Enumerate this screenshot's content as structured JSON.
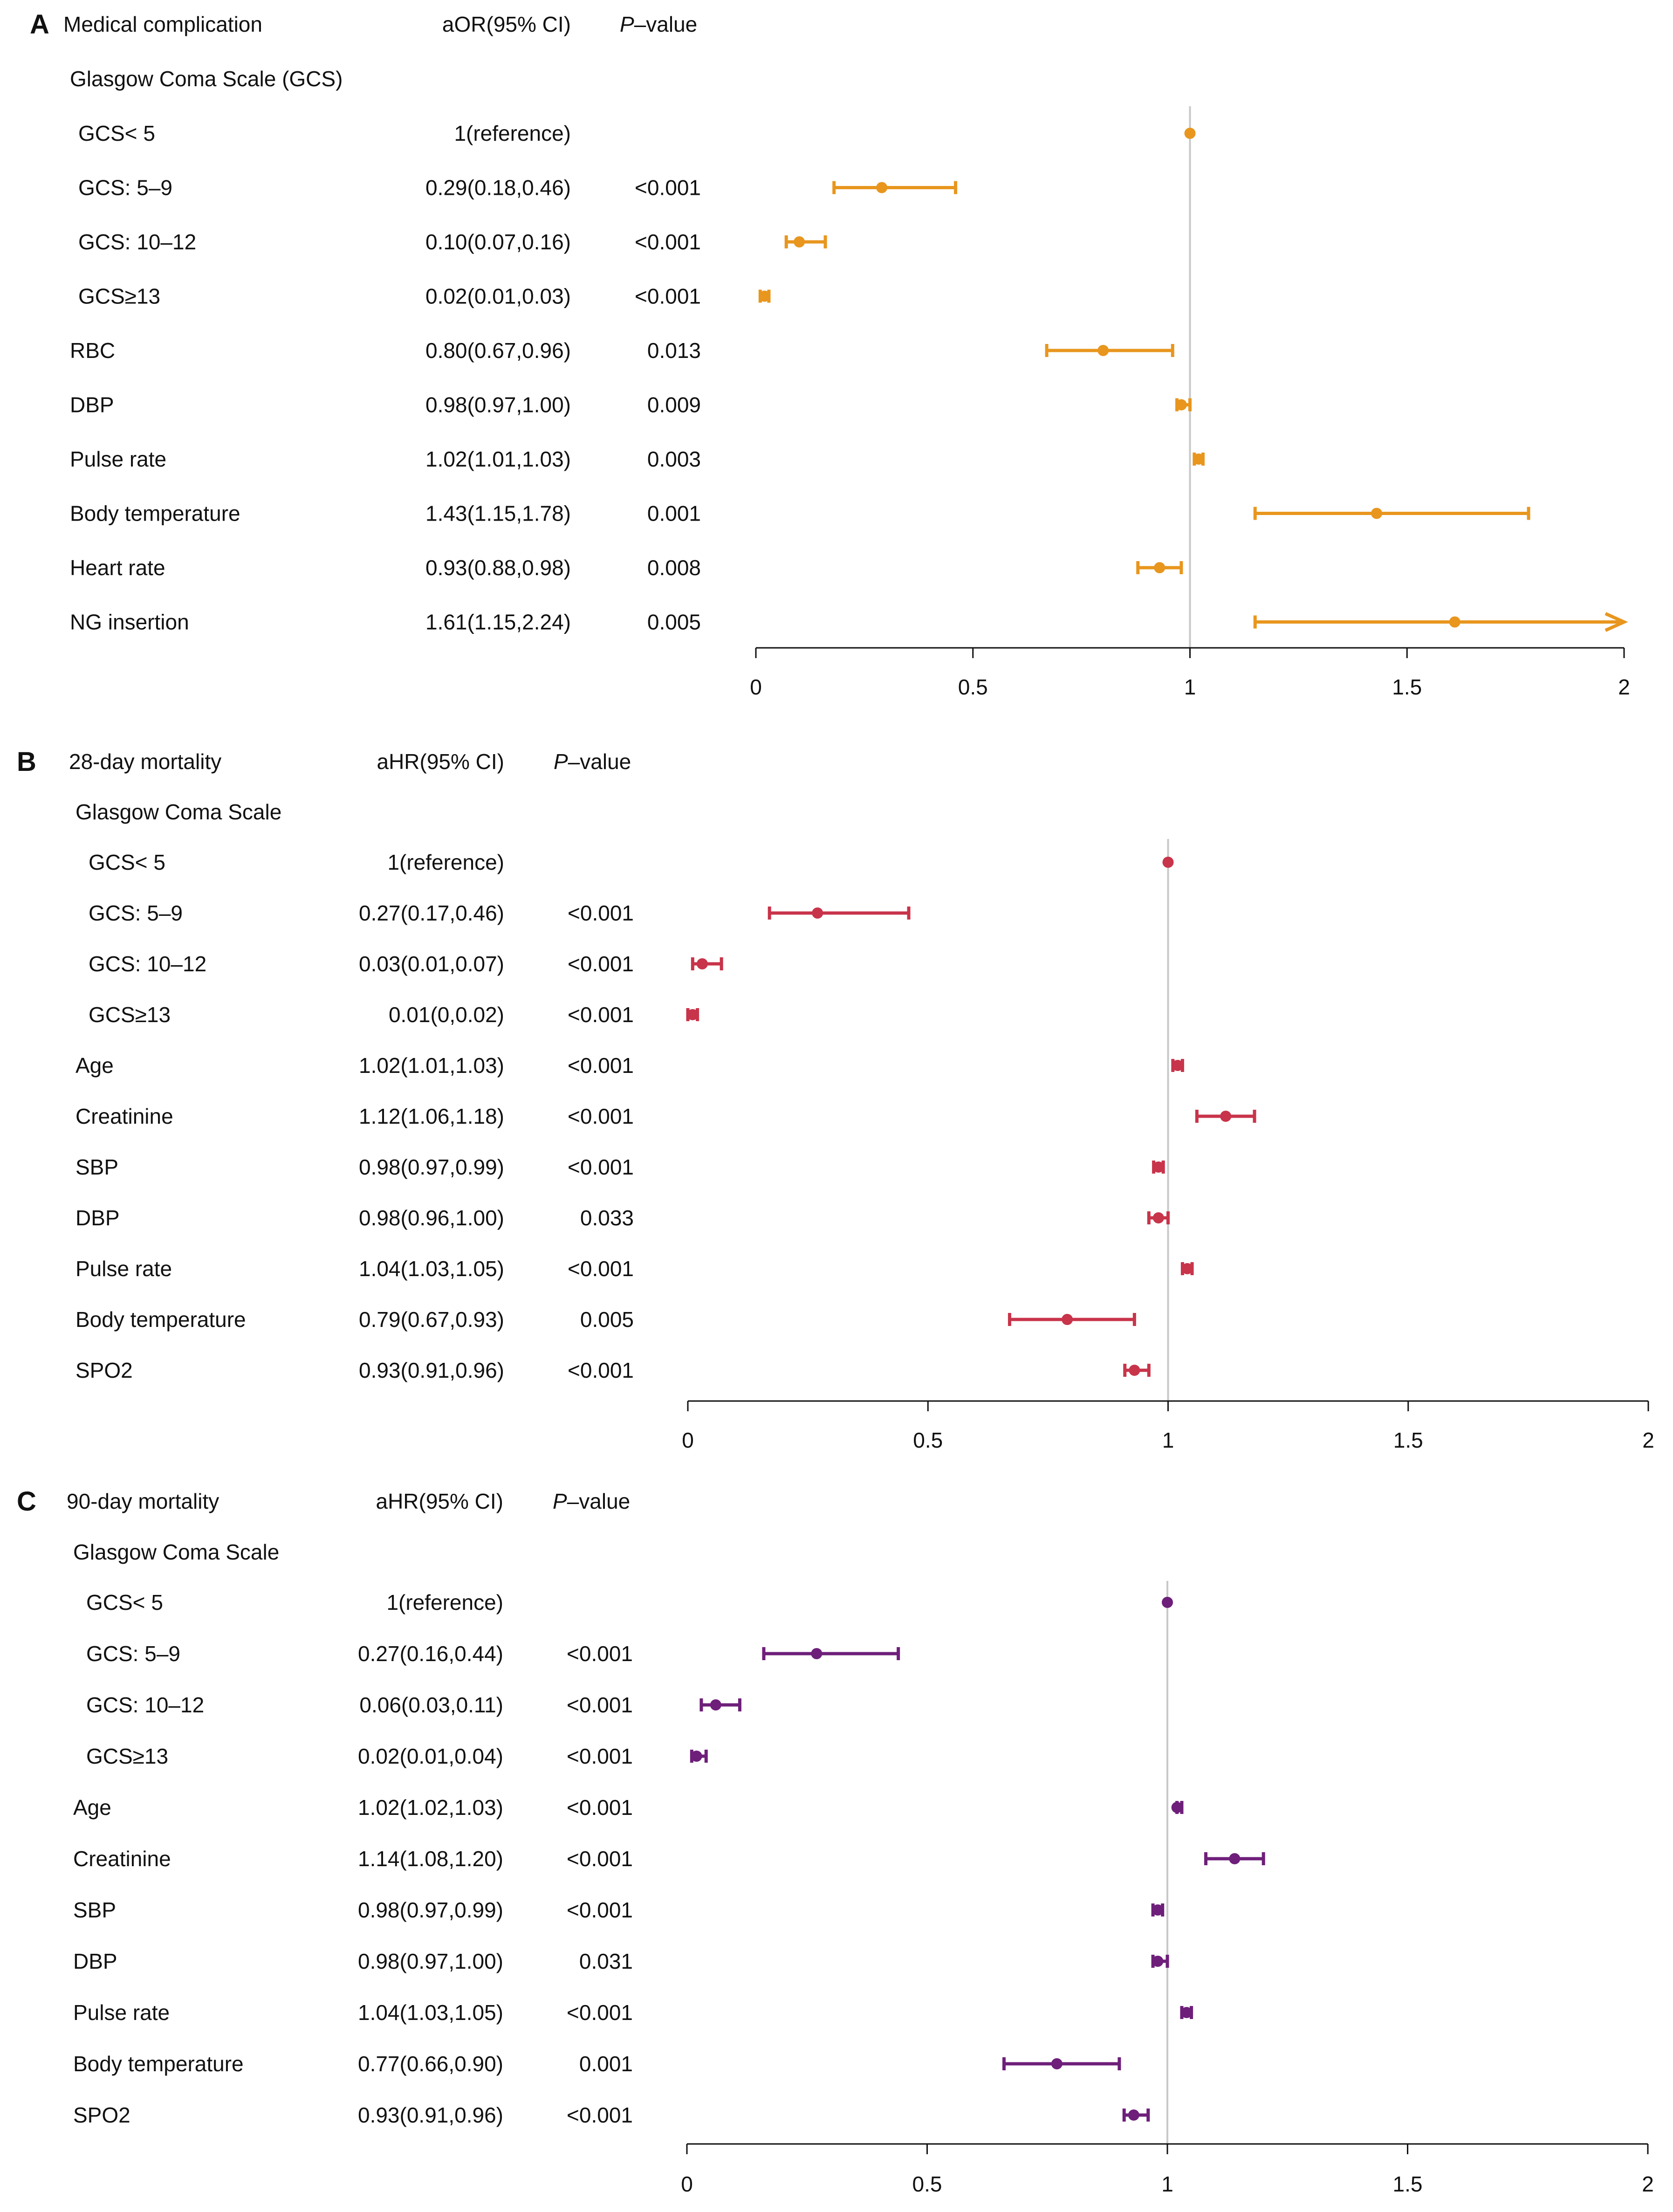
{
  "chart_data": [
    {
      "type": "forest",
      "panel_label": "A",
      "title": "Medical complication",
      "effect_header": "aOR(95% CI)",
      "p_header_italic": "P",
      "p_header_rest": "–value",
      "group_label": "Glasgow Coma Scale (GCS)",
      "color": "#E8961E",
      "x_range": [
        0,
        2
      ],
      "x_ticks": [
        0,
        0.5,
        1,
        1.5,
        2
      ],
      "x_tick_labels": [
        "0",
        "0.5",
        "1",
        "1.5",
        "2"
      ],
      "reference_line": 1,
      "rows": [
        {
          "label": "GCS< 5",
          "indent": true,
          "ci_text": "1(reference)",
          "p": "",
          "est": 1,
          "lo": 1,
          "hi": 1
        },
        {
          "label": "GCS: 5–9",
          "indent": true,
          "ci_text": "0.29(0.18,0.46)",
          "p": "<0.001",
          "est": 0.29,
          "lo": 0.18,
          "hi": 0.46
        },
        {
          "label": "GCS: 10–12",
          "indent": true,
          "ci_text": "0.10(0.07,0.16)",
          "p": "<0.001",
          "est": 0.1,
          "lo": 0.07,
          "hi": 0.16
        },
        {
          "label": "GCS≥13",
          "indent": true,
          "ci_text": "0.02(0.01,0.03)",
          "p": "<0.001",
          "est": 0.02,
          "lo": 0.01,
          "hi": 0.03
        },
        {
          "label": "RBC",
          "indent": false,
          "ci_text": "0.80(0.67,0.96)",
          "p": "0.013",
          "est": 0.8,
          "lo": 0.67,
          "hi": 0.96
        },
        {
          "label": "DBP",
          "indent": false,
          "ci_text": "0.98(0.97,1.00)",
          "p": "0.009",
          "est": 0.98,
          "lo": 0.97,
          "hi": 1.0
        },
        {
          "label": "Pulse rate",
          "indent": false,
          "ci_text": "1.02(1.01,1.03)",
          "p": "0.003",
          "est": 1.02,
          "lo": 1.01,
          "hi": 1.03
        },
        {
          "label": "Body temperature",
          "indent": false,
          "ci_text": "1.43(1.15,1.78)",
          "p": "0.001",
          "est": 1.43,
          "lo": 1.15,
          "hi": 1.78
        },
        {
          "label": "Heart rate",
          "indent": false,
          "ci_text": "0.93(0.88,0.98)",
          "p": "0.008",
          "est": 0.93,
          "lo": 0.88,
          "hi": 0.98
        },
        {
          "label": "NG insertion",
          "indent": false,
          "ci_text": "1.61(1.15,2.24)",
          "p": "0.005",
          "est": 1.61,
          "lo": 1.15,
          "hi": 2.24,
          "arrow": true
        }
      ]
    },
    {
      "type": "forest",
      "panel_label": "B",
      "title": "28-day mortality",
      "effect_header": "aHR(95% CI)",
      "p_header_italic": "P",
      "p_header_rest": "–value",
      "group_label": "Glasgow Coma Scale",
      "color": "#C8344A",
      "x_range": [
        0,
        2
      ],
      "x_ticks": [
        0,
        0.5,
        1,
        1.5,
        2
      ],
      "x_tick_labels": [
        "0",
        "0.5",
        "1",
        "1.5",
        "2"
      ],
      "reference_line": 1,
      "rows": [
        {
          "label": "GCS< 5",
          "indent": true,
          "ci_text": "1(reference)",
          "p": "",
          "est": 1,
          "lo": 1,
          "hi": 1
        },
        {
          "label": "GCS: 5–9",
          "indent": true,
          "ci_text": "0.27(0.17,0.46)",
          "p": "<0.001",
          "est": 0.27,
          "lo": 0.17,
          "hi": 0.46
        },
        {
          "label": "GCS: 10–12",
          "indent": true,
          "ci_text": "0.03(0.01,0.07)",
          "p": "<0.001",
          "est": 0.03,
          "lo": 0.01,
          "hi": 0.07
        },
        {
          "label": "GCS≥13",
          "indent": true,
          "ci_text": "0.01(0,0.02)",
          "p": "<0.001",
          "est": 0.01,
          "lo": 0.0,
          "hi": 0.02
        },
        {
          "label": "Age",
          "indent": false,
          "ci_text": "1.02(1.01,1.03)",
          "p": "<0.001",
          "est": 1.02,
          "lo": 1.01,
          "hi": 1.03
        },
        {
          "label": "Creatinine",
          "indent": false,
          "ci_text": "1.12(1.06,1.18)",
          "p": "<0.001",
          "est": 1.12,
          "lo": 1.06,
          "hi": 1.18
        },
        {
          "label": "SBP",
          "indent": false,
          "ci_text": "0.98(0.97,0.99)",
          "p": "<0.001",
          "est": 0.98,
          "lo": 0.97,
          "hi": 0.99
        },
        {
          "label": "DBP",
          "indent": false,
          "ci_text": "0.98(0.96,1.00)",
          "p": "0.033",
          "est": 0.98,
          "lo": 0.96,
          "hi": 1.0
        },
        {
          "label": "Pulse rate",
          "indent": false,
          "ci_text": "1.04(1.03,1.05)",
          "p": "<0.001",
          "est": 1.04,
          "lo": 1.03,
          "hi": 1.05
        },
        {
          "label": "Body temperature",
          "indent": false,
          "ci_text": "0.79(0.67,0.93)",
          "p": "0.005",
          "est": 0.79,
          "lo": 0.67,
          "hi": 0.93
        },
        {
          "label": "SPO2",
          "indent": false,
          "ci_text": "0.93(0.91,0.96)",
          "p": "<0.001",
          "est": 0.93,
          "lo": 0.91,
          "hi": 0.96
        }
      ]
    },
    {
      "type": "forest",
      "panel_label": "C",
      "title": "90-day mortality",
      "effect_header": "aHR(95% CI)",
      "p_header_italic": "P",
      "p_header_rest": "–value",
      "group_label": "Glasgow Coma Scale",
      "color": "#6E1F7A",
      "x_range": [
        0,
        2
      ],
      "x_ticks": [
        0,
        0.5,
        1,
        1.5,
        2
      ],
      "x_tick_labels": [
        "0",
        "0.5",
        "1",
        "1.5",
        "2"
      ],
      "reference_line": 1,
      "rows": [
        {
          "label": "GCS< 5",
          "indent": true,
          "ci_text": "1(reference)",
          "p": "",
          "est": 1,
          "lo": 1,
          "hi": 1
        },
        {
          "label": "GCS: 5–9",
          "indent": true,
          "ci_text": "0.27(0.16,0.44)",
          "p": "<0.001",
          "est": 0.27,
          "lo": 0.16,
          "hi": 0.44
        },
        {
          "label": "GCS: 10–12",
          "indent": true,
          "ci_text": "0.06(0.03,0.11)",
          "p": "<0.001",
          "est": 0.06,
          "lo": 0.03,
          "hi": 0.11
        },
        {
          "label": "GCS≥13",
          "indent": true,
          "ci_text": "0.02(0.01,0.04)",
          "p": "<0.001",
          "est": 0.02,
          "lo": 0.01,
          "hi": 0.04
        },
        {
          "label": "Age",
          "indent": false,
          "ci_text": "1.02(1.02,1.03)",
          "p": "<0.001",
          "est": 1.02,
          "lo": 1.02,
          "hi": 1.03
        },
        {
          "label": "Creatinine",
          "indent": false,
          "ci_text": "1.14(1.08,1.20)",
          "p": "<0.001",
          "est": 1.14,
          "lo": 1.08,
          "hi": 1.2
        },
        {
          "label": "SBP",
          "indent": false,
          "ci_text": "0.98(0.97,0.99)",
          "p": "<0.001",
          "est": 0.98,
          "lo": 0.97,
          "hi": 0.99
        },
        {
          "label": "DBP",
          "indent": false,
          "ci_text": "0.98(0.97,1.00)",
          "p": "0.031",
          "est": 0.98,
          "lo": 0.97,
          "hi": 1.0
        },
        {
          "label": "Pulse rate",
          "indent": false,
          "ci_text": "1.04(1.03,1.05)",
          "p": "<0.001",
          "est": 1.04,
          "lo": 1.03,
          "hi": 1.05
        },
        {
          "label": "Body temperature",
          "indent": false,
          "ci_text": "0.77(0.66,0.90)",
          "p": "0.001",
          "est": 0.77,
          "lo": 0.66,
          "hi": 0.9
        },
        {
          "label": "SPO2",
          "indent": false,
          "ci_text": "0.93(0.91,0.96)",
          "p": "<0.001",
          "est": 0.93,
          "lo": 0.91,
          "hi": 0.96
        }
      ]
    }
  ]
}
